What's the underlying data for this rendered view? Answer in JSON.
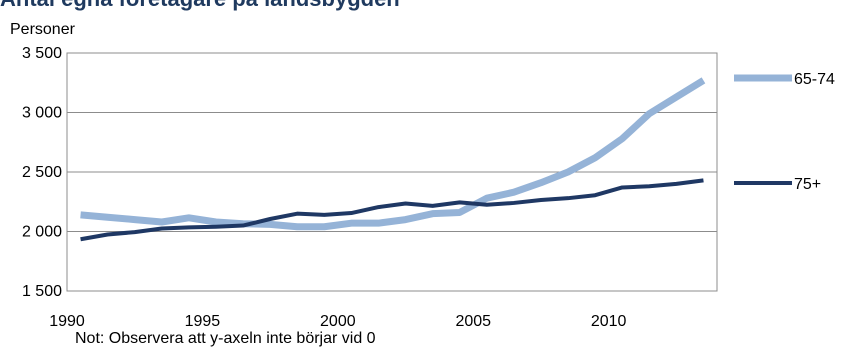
{
  "page": {
    "heading": "Antal egna företagare på landsbygden",
    "footnote": "Not: Observera att y-axeln inte börjar vid 0"
  },
  "chart_data": {
    "type": "line",
    "title": "",
    "xlabel": "",
    "ylabel": "Personer",
    "x": [
      1990,
      1991,
      1992,
      1993,
      1994,
      1995,
      1996,
      1997,
      1998,
      1999,
      2000,
      2001,
      2002,
      2003,
      2004,
      2005,
      2006,
      2007,
      2008,
      2009,
      2010,
      2011,
      2012,
      2013
    ],
    "xlim": [
      1990,
      2014
    ],
    "xticks": [
      1990,
      1995,
      2000,
      2005,
      2010
    ],
    "ylim": [
      1500,
      3500
    ],
    "yticks": [
      1500,
      2000,
      2500,
      3000,
      3500
    ],
    "ytick_labels": [
      "1 500",
      "2 000",
      "2 500",
      "3 000",
      "3 500"
    ],
    "grid": "horizontal",
    "legend_position": "right",
    "series": [
      {
        "name": "65-74",
        "color": "#95b3d7",
        "stroke": "thick",
        "values": [
          2140,
          2120,
          2100,
          2080,
          2115,
          2080,
          2065,
          2060,
          2040,
          2040,
          2070,
          2070,
          2100,
          2150,
          2160,
          2280,
          2330,
          2410,
          2500,
          2620,
          2780,
          2990,
          3130,
          3270
        ]
      },
      {
        "name": "75+",
        "color": "#1f3864",
        "stroke": "medium",
        "values": [
          1935,
          1975,
          1995,
          2025,
          2035,
          2040,
          2050,
          2105,
          2150,
          2140,
          2155,
          2205,
          2235,
          2215,
          2245,
          2225,
          2240,
          2265,
          2280,
          2305,
          2370,
          2380,
          2400,
          2430
        ]
      }
    ]
  }
}
